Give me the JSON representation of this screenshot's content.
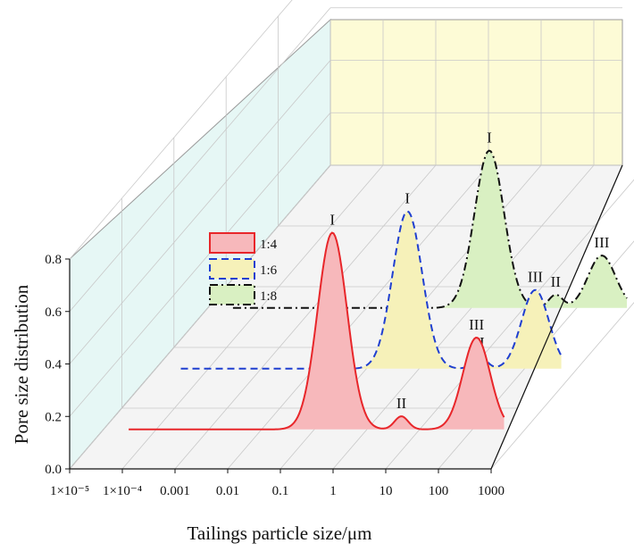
{
  "chart_data": {
    "type": "area",
    "projection": "3d-waterfall",
    "xlabel": "Tailings particle size/μm",
    "ylabel": "Pore size distribution",
    "x_scale": "log",
    "x_ticks": [
      "1×10⁻⁵",
      "1×10⁻⁴",
      "0.001",
      "0.01",
      "0.1",
      "1",
      "10",
      "100",
      "1000"
    ],
    "x_tick_values": [
      1e-05,
      0.0001,
      0.001,
      0.01,
      0.1,
      1,
      10,
      100,
      1000
    ],
    "y_ticks": [
      "0.0",
      "0.2",
      "0.4",
      "0.6",
      "0.8"
    ],
    "ylim": [
      0,
      0.8
    ],
    "grid": true,
    "legend_position": "top-left",
    "series": [
      {
        "name": "1:4",
        "color": "#e8262a",
        "fill": "#f7b8bb",
        "line_style": "solid",
        "peaks": [
          {
            "label": "I",
            "x": 0.22,
            "y": 0.75
          },
          {
            "label": "II",
            "x": 4.5,
            "y": 0.05
          },
          {
            "label": "III",
            "x": 120,
            "y": 0.35
          }
        ]
      },
      {
        "name": "1:6",
        "color": "#1f3fd0",
        "fill": "#f6f1b9",
        "line_style": "dashed",
        "peaks": [
          {
            "label": "I",
            "x": 0.6,
            "y": 0.6
          },
          {
            "label": "II",
            "x": 14,
            "y": 0.05
          },
          {
            "label": "III",
            "x": 160,
            "y": 0.3
          }
        ]
      },
      {
        "name": "1:8",
        "color": "#111111",
        "fill": "#d9f0c2",
        "line_style": "dashdot",
        "peaks": [
          {
            "label": "I",
            "x": 2.2,
            "y": 0.6
          },
          {
            "label": "II",
            "x": 40,
            "y": 0.05
          },
          {
            "label": "III",
            "x": 300,
            "y": 0.2
          }
        ]
      }
    ]
  },
  "colors": {
    "left_wall": "#e6f7f5",
    "back_wall": "#fdfbd6",
    "floor": "#f4f4f4",
    "grid": "#c8c8c8",
    "axis": "#111111"
  }
}
